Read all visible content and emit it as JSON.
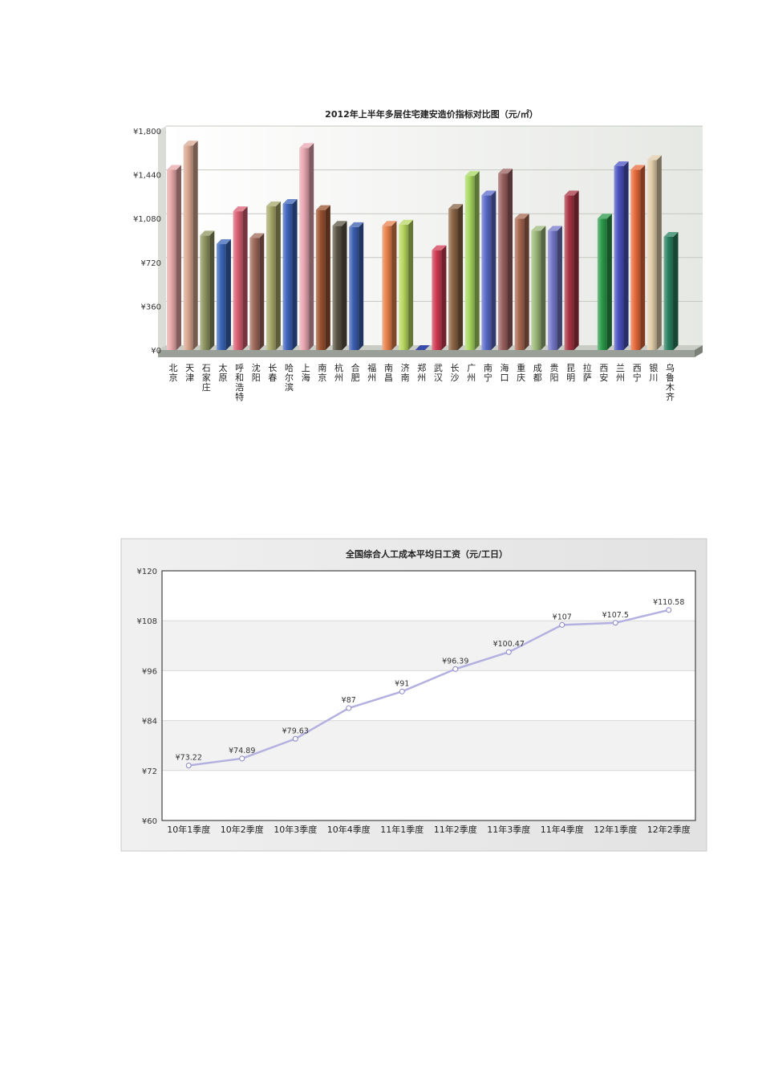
{
  "chart_data": [
    {
      "type": "bar",
      "title": "2012年上半年多层住宅建安造价指标对比图（元/㎡）",
      "ylim": [
        0,
        1800
      ],
      "yticks": [
        "¥0",
        "¥360",
        "¥720",
        "¥1,080",
        "¥1,440",
        "¥1,800"
      ],
      "grid": true,
      "categories": [
        "北京",
        "天津",
        "石家庄",
        "太原",
        "呼和浩特",
        "沈阳",
        "长春",
        "哈尔滨",
        "上海",
        "南京",
        "杭州",
        "合肥",
        "福州",
        "南昌",
        "济南",
        "郑州",
        "武汉",
        "长沙",
        "广州",
        "南宁",
        "海口",
        "重庆",
        "成都",
        "贵阳",
        "昆明",
        "拉萨",
        "西安",
        "兰州",
        "西宁",
        "银川",
        "乌鲁木齐"
      ],
      "values": [
        1480,
        1680,
        940,
        870,
        1140,
        920,
        1180,
        1200,
        1660,
        1150,
        1020,
        1010,
        0,
        1020,
        1030,
        0,
        820,
        1160,
        1430,
        1270,
        1450,
        1080,
        980,
        980,
        1270,
        0,
        1080,
        1510,
        1480,
        1560,
        930
      ],
      "colors": [
        "#e8a8a8",
        "#d8a690",
        "#8e9460",
        "#3a66b6",
        "#d85e72",
        "#a06a5a",
        "#a6a86a",
        "#3e62b8",
        "#e8a6b0",
        "#9a5230",
        "#5a5444",
        "#3a5eb0",
        "#4a64c8",
        "#e8824c",
        "#b8d860",
        "#4a64c8",
        "#d03a52",
        "#8a6444",
        "#a8d860",
        "#5a6ac8",
        "#9a6060",
        "#a86850",
        "#9cb878",
        "#7478c8",
        "#a83444",
        "#a83444",
        "#2a9a4a",
        "#4a52c0",
        "#e86a3a",
        "#e0cca8",
        "#2a8060"
      ]
    },
    {
      "type": "line",
      "title": "全国综合人工成本平均日工资（元/工日）",
      "ylim": [
        60,
        120
      ],
      "yticks": [
        "¥60",
        "¥72",
        "¥84",
        "¥96",
        "¥108",
        "¥120"
      ],
      "grid": true,
      "categories": [
        "10年1季度",
        "10年2季度",
        "10年3季度",
        "10年4季度",
        "11年1季度",
        "11年2季度",
        "11年3季度",
        "11年4季度",
        "12年1季度",
        "12年2季度"
      ],
      "series": [
        {
          "values": [
            73.22,
            74.89,
            79.63,
            87,
            91,
            96.39,
            100.47,
            107,
            107.5,
            110.58
          ],
          "labels": [
            "¥73.22",
            "¥74.89",
            "¥79.63",
            "¥87",
            "¥91",
            "¥96.39",
            "¥100.47",
            "¥107",
            "¥107.5",
            "¥110.58"
          ],
          "color": "#b4b0e0"
        }
      ]
    }
  ]
}
